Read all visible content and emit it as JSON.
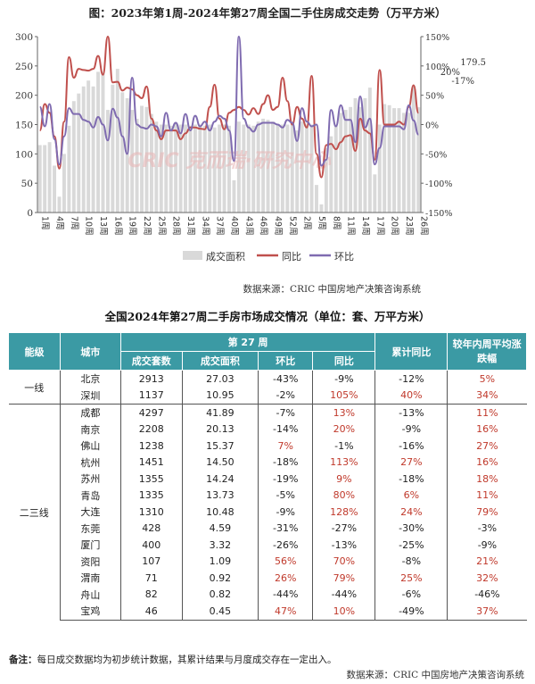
{
  "chart_data": {
    "type": "bar+line",
    "title": "图：2023年第1周-2024年第27周全国二手住房成交走势（万平方米）",
    "left_ylim": [
      0,
      300
    ],
    "left_ticks": [
      "0",
      "50",
      "100",
      "150",
      "200",
      "250",
      "300"
    ],
    "right_ylim": [
      -150,
      150
    ],
    "right_ticks": [
      "-150%",
      "-100%",
      "-50%",
      "0%",
      "50%",
      "100%",
      "150%"
    ],
    "x_tick_labels": [
      "1周",
      "4周",
      "7周",
      "10周",
      "13周",
      "16周",
      "19周",
      "22周",
      "25周",
      "28周",
      "31周",
      "34周",
      "37周",
      "40周",
      "43周",
      "46周",
      "49周",
      "52周",
      "2周",
      "5周",
      "8周",
      "11周",
      "14周",
      "17周",
      "20周",
      "23周",
      "26周"
    ],
    "legend_position": "bottom",
    "series": [
      {
        "name": "成交面积",
        "type": "bar",
        "axis": "left",
        "color": "#d9d9d9",
        "values": [
          115,
          115,
          120,
          80,
          27,
          100,
          148,
          190,
          203,
          215,
          225,
          215,
          240,
          240,
          175,
          218,
          245,
          205,
          195,
          175,
          160,
          182,
          180,
          168,
          155,
          150,
          150,
          148,
          152,
          150,
          150,
          148,
          150,
          150,
          148,
          150,
          145,
          150,
          150,
          148,
          55,
          155,
          150,
          150,
          148,
          155,
          160,
          158,
          155,
          150,
          150,
          150,
          150,
          140,
          155,
          150,
          150,
          47,
          14,
          110,
          130,
          150,
          170,
          175,
          180,
          195,
          180,
          195,
          213,
          65,
          150,
          185,
          183,
          178,
          178,
          170,
          170,
          215,
          179.5
        ]
      },
      {
        "name": "同比",
        "type": "line",
        "axis": "right",
        "color": "#c0504d",
        "values": [
          -10,
          35,
          20,
          -20,
          -75,
          5,
          115,
          80,
          95,
          93,
          92,
          95,
          117,
          85,
          150,
          72,
          73,
          58,
          63,
          60,
          50,
          45,
          65,
          10,
          -10,
          -25,
          -10,
          -10,
          -10,
          -25,
          -15,
          -5,
          -5,
          -7,
          -8,
          30,
          68,
          10,
          -8,
          20,
          25,
          30,
          25,
          17,
          28,
          18,
          35,
          50,
          25,
          30,
          80,
          40,
          0,
          30,
          10,
          -5,
          83,
          -50,
          -90,
          -35,
          -33,
          -42,
          -30,
          -20,
          -18,
          -45,
          10,
          -10,
          -15,
          -60,
          93,
          0,
          0,
          0,
          5,
          0,
          30,
          67,
          20
        ]
      },
      {
        "name": "环比",
        "type": "line",
        "axis": "right",
        "color": "#7f6bb0",
        "values": [
          30,
          -3,
          35,
          -25,
          -68,
          -20,
          28,
          18,
          18,
          8,
          5,
          -5,
          13,
          0,
          -27,
          27,
          12,
          -20,
          -50,
          80,
          0,
          -5,
          -7,
          0,
          -3,
          -20,
          20,
          -10,
          3,
          -15,
          18,
          -10,
          15,
          -3,
          5,
          -10,
          5,
          15,
          10,
          -10,
          -62,
          150,
          10,
          -5,
          -12,
          0,
          3,
          3,
          3,
          0,
          -5,
          8,
          3,
          -28,
          28,
          5,
          -3,
          0,
          -70,
          -60,
          25,
          -3,
          33,
          8,
          8,
          -30,
          48,
          -5,
          10,
          -68,
          -40,
          -3,
          -3,
          -3,
          -3,
          -8,
          33,
          7,
          -17
        ]
      }
    ],
    "annotations": [
      "179.5",
      "20%",
      "-17%"
    ],
    "watermark": "CRIC 克而瑞·研究中心"
  },
  "chart_source": "数据来源：CRIC 中国房地产决策咨询系统",
  "table": {
    "title": "全国2024年第27周二手房市场成交情况（单位：套、万平方米）",
    "headers": {
      "tier": "能级",
      "city": "城市",
      "week": "第 27 周",
      "units": "成交套数",
      "area": "成交面积",
      "mom": "环比",
      "yoy": "同比",
      "cum_yoy": "累计同比",
      "avg_change": "较年内周平均涨跌幅"
    },
    "groups": [
      {
        "tier": "一线",
        "rows": [
          [
            "北京",
            "2913",
            "27.03",
            "-43%",
            "-9%",
            "-12%",
            "5%"
          ],
          [
            "深圳",
            "1137",
            "10.95",
            "-2%",
            "105%",
            "40%",
            "34%"
          ]
        ]
      },
      {
        "tier": "二三线",
        "rows": [
          [
            "成都",
            "4297",
            "41.89",
            "-7%",
            "13%",
            "-13%",
            "11%"
          ],
          [
            "南京",
            "2208",
            "20.13",
            "-14%",
            "20%",
            "-9%",
            "16%"
          ],
          [
            "佛山",
            "1238",
            "15.37",
            "7%",
            "-1%",
            "-16%",
            "27%"
          ],
          [
            "杭州",
            "1451",
            "14.50",
            "-18%",
            "113%",
            "27%",
            "16%"
          ],
          [
            "苏州",
            "1355",
            "14.24",
            "-19%",
            "9%",
            "-18%",
            "18%"
          ],
          [
            "青岛",
            "1335",
            "13.73",
            "-5%",
            "80%",
            "6%",
            "11%"
          ],
          [
            "大连",
            "1310",
            "10.48",
            "-9%",
            "128%",
            "24%",
            "79%"
          ],
          [
            "东莞",
            "428",
            "4.59",
            "-31%",
            "-27%",
            "-30%",
            "-3%"
          ],
          [
            "厦门",
            "400",
            "3.32",
            "-26%",
            "-13%",
            "-25%",
            "-9%"
          ],
          [
            "资阳",
            "107",
            "1.09",
            "56%",
            "70%",
            "-8%",
            "21%"
          ],
          [
            "渭南",
            "71",
            "0.92",
            "26%",
            "79%",
            "25%",
            "32%"
          ],
          [
            "舟山",
            "82",
            "0.82",
            "-44%",
            "-44%",
            "-6%",
            "-46%"
          ],
          [
            "宝鸡",
            "46",
            "0.45",
            "47%",
            "10%",
            "-49%",
            "37%"
          ]
        ]
      }
    ],
    "positive_color": "#c0392b",
    "header_color": "#3b9aa4"
  },
  "note_label": "备注：",
  "note_text": "每日成交数据均为初步统计数据，其累计结果与月度成交存在一定出入。",
  "table_source": "数据来源：CRIC 中国房地产决策咨询系统"
}
